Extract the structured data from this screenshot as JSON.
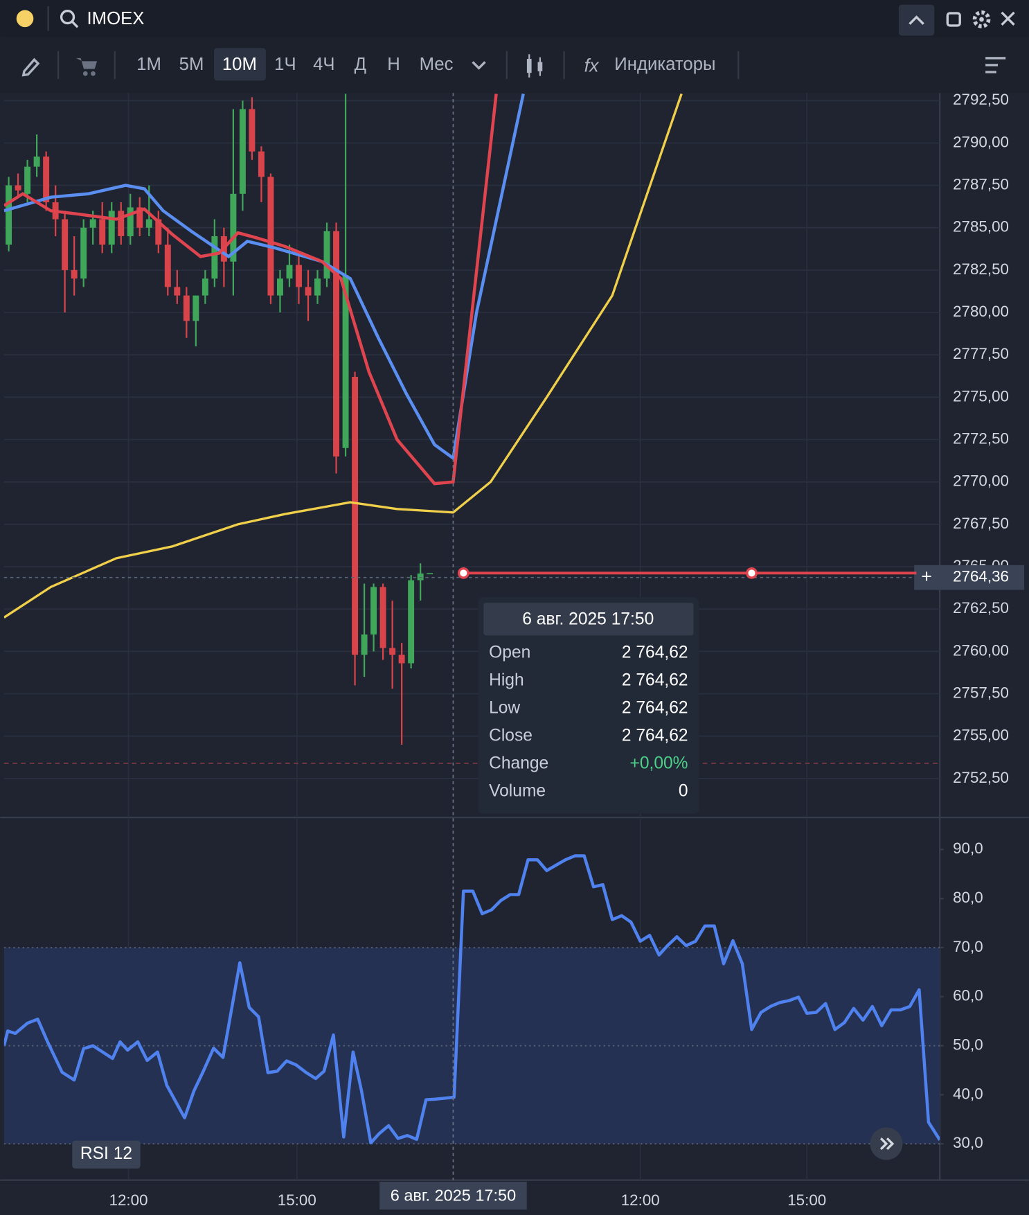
{
  "window": {
    "symbol": "IMOEX"
  },
  "toolbar": {
    "timeframes": [
      "1М",
      "5М",
      "10М",
      "1Ч",
      "4Ч",
      "Д",
      "Н",
      "Мес"
    ],
    "indicators": "Индикаторы"
  },
  "tooltip": {
    "title": "6 авг. 2025 17:50",
    "rows": [
      {
        "label": "Open",
        "value": "2 764,62"
      },
      {
        "label": "High",
        "value": "2 764,62"
      },
      {
        "label": "Low",
        "value": "2 764,62"
      },
      {
        "label": "Close",
        "value": "2 764,62"
      },
      {
        "label": "Change",
        "value": "+0,00%",
        "color": "#4cd08a"
      },
      {
        "label": "Volume",
        "value": "0"
      }
    ]
  },
  "chart_data": [
    {
      "type": "candlestick",
      "xlim": [
        0,
        100
      ],
      "ylim": [
        2750.2,
        2792.95
      ],
      "grid": true,
      "up_color": "#3fa65a",
      "down_color": "#d9434a",
      "xticks": [
        {
          "value": 13.3,
          "label": "12:00"
        },
        {
          "value": 31.3,
          "label": "15:00"
        },
        {
          "value": 68,
          "label": "12:00"
        },
        {
          "value": 85.8,
          "label": "15:00"
        }
      ],
      "yticks": [
        {
          "value": 2752.5,
          "label": "2752,50"
        },
        {
          "value": 2755,
          "label": "2755,00"
        },
        {
          "value": 2757.5,
          "label": "2757,50"
        },
        {
          "value": 2760,
          "label": "2760,00"
        },
        {
          "value": 2762.5,
          "label": "2762,50"
        },
        {
          "value": 2765,
          "label": "2765,00"
        },
        {
          "value": 2767.5,
          "label": "2767,50"
        },
        {
          "value": 2770,
          "label": "2770,00"
        },
        {
          "value": 2772.5,
          "label": "2772,50"
        },
        {
          "value": 2775,
          "label": "2775,00"
        },
        {
          "value": 2777.5,
          "label": "2777,50"
        },
        {
          "value": 2780,
          "label": "2780,00"
        },
        {
          "value": 2782.5,
          "label": "2782,50"
        },
        {
          "value": 2785,
          "label": "2785,00"
        },
        {
          "value": 2787.5,
          "label": "2787,50"
        },
        {
          "value": 2790,
          "label": "2790,00"
        },
        {
          "value": 2792.5,
          "label": "2792,50"
        }
      ],
      "candles": {
        "x": [
          0.5,
          1.5,
          2.5,
          3.5,
          4.5,
          5.5,
          6.5,
          7.5,
          8.5,
          9.5,
          10.5,
          11.5,
          12.5,
          13.5,
          14.5,
          15.5,
          16.5,
          17.5,
          18.5,
          19.5,
          20.5,
          21.5,
          22.5,
          23.5,
          24.5,
          25.5,
          26.5,
          27.5,
          28.5,
          29.5,
          30.5,
          31.5,
          32.5,
          33.5,
          34.5,
          35.5,
          36.5,
          37.5,
          38.5,
          39.5,
          40.5,
          41.5,
          42.5,
          43.5,
          44.5,
          45.5
        ],
        "open": [
          2784.0,
          2787.5,
          2787.0,
          2788.6,
          2789.2,
          2786.5,
          2785.5,
          2782.5,
          2782.0,
          2785.0,
          2785.5,
          2784.0,
          2786.0,
          2784.5,
          2786.2,
          2785.0,
          2785.5,
          2784.0,
          2781.5,
          2781.0,
          2779.5,
          2781.0,
          2782.0,
          2784.5,
          2783.0,
          2787.0,
          2792.0,
          2789.5,
          2788.0,
          2781.0,
          2782.0,
          2782.8,
          2781.5,
          2781.0,
          2782.0,
          2784.8,
          2772.0,
          2776.2,
          2759.8,
          2761.0,
          2763.8,
          2760.2,
          2759.8,
          2759.3,
          2764.2,
          2764.62
        ],
        "high": [
          2788.0,
          2788.2,
          2789.0,
          2790.5,
          2789.5,
          2787.5,
          2786.0,
          2784.5,
          2785.5,
          2786.0,
          2786.5,
          2786.5,
          2786.5,
          2787.0,
          2786.8,
          2787.5,
          2786.0,
          2785.0,
          2782.5,
          2781.5,
          2781.0,
          2782.5,
          2785.5,
          2785.0,
          2792.0,
          2792.5,
          2792.7,
          2789.8,
          2788.2,
          2782.5,
          2784.0,
          2783.5,
          2782.5,
          2782.5,
          2785.3,
          2785.3,
          2792.9,
          2776.5,
          2764.0,
          2764.0,
          2764.0,
          2763.0,
          2760.5,
          2764.5,
          2765.2,
          2764.62
        ],
        "low": [
          2783.6,
          2786.8,
          2786.5,
          2788.0,
          2786.0,
          2784.5,
          2780.0,
          2781.0,
          2781.5,
          2784.0,
          2783.5,
          2783.5,
          2784.0,
          2784.0,
          2784.5,
          2784.5,
          2783.5,
          2781.0,
          2780.5,
          2778.5,
          2778.0,
          2780.5,
          2781.5,
          2781.5,
          2781.0,
          2786.0,
          2789.0,
          2786.5,
          2780.5,
          2780.0,
          2781.5,
          2780.5,
          2779.5,
          2780.5,
          2781.5,
          2770.5,
          2771.5,
          2758.0,
          2758.5,
          2760.0,
          2759.5,
          2757.8,
          2754.5,
          2759.0,
          2763.0,
          2764.62
        ],
        "close": [
          2787.5,
          2787.2,
          2788.6,
          2789.2,
          2786.5,
          2785.5,
          2782.5,
          2782.0,
          2785.0,
          2785.5,
          2784.0,
          2786.0,
          2784.5,
          2786.2,
          2785.0,
          2785.5,
          2784.0,
          2781.5,
          2781.0,
          2779.5,
          2781.0,
          2782.0,
          2784.5,
          2783.0,
          2787.0,
          2792.0,
          2789.5,
          2788.0,
          2781.0,
          2782.0,
          2782.8,
          2781.5,
          2781.0,
          2782.0,
          2784.8,
          2771.5,
          2782.2,
          2759.8,
          2761.0,
          2763.8,
          2760.2,
          2759.8,
          2759.3,
          2764.2,
          2764.6,
          2764.62
        ]
      },
      "series": [
        {
          "color": "#f0cf4a",
          "x": [
            0,
            5,
            12,
            18,
            25,
            30,
            35,
            37,
            42,
            48,
            52,
            58,
            65,
            72.4
          ],
          "values": [
            2762.0,
            2763.8,
            2765.5,
            2766.2,
            2767.5,
            2768.1,
            2768.6,
            2768.8,
            2768.4,
            2768.2,
            2770.0,
            2775.0,
            2781.0,
            2792.9
          ]
        },
        {
          "color": "#5a8ef0",
          "x": [
            0,
            5,
            9,
            13,
            15,
            17,
            20,
            24,
            26,
            29,
            34,
            37,
            40,
            43,
            46,
            48,
            50.5,
            55.5
          ],
          "values": [
            2786.0,
            2786.8,
            2787.0,
            2787.5,
            2787.3,
            2786.0,
            2784.8,
            2783.3,
            2784.2,
            2783.8,
            2783.0,
            2782.0,
            2778.5,
            2775.2,
            2772.2,
            2771.4,
            2780.0,
            2792.9
          ]
        },
        {
          "color": "#e0454f",
          "x": [
            0,
            2,
            5,
            8,
            12,
            15,
            18,
            21,
            23,
            25,
            27,
            30,
            34,
            36,
            39,
            42,
            46,
            48,
            52.6
          ],
          "values": [
            2786.3,
            2787.0,
            2786.0,
            2785.8,
            2785.5,
            2786.1,
            2784.6,
            2783.3,
            2783.5,
            2784.7,
            2784.4,
            2783.9,
            2783.0,
            2782.0,
            2776.5,
            2772.5,
            2769.9,
            2770.0,
            2792.9
          ]
        }
      ],
      "level_line": {
        "value": 2764.62,
        "x": [
          49.1,
          97.5
        ],
        "handles": [
          49.1,
          79.9
        ],
        "color": "#e0454f"
      },
      "last_price": {
        "value": 2764.36,
        "label": "2764,36"
      },
      "reference_line": 2753.4,
      "crosshair": {
        "value": 48,
        "label": "6 авг. 2025 17:50"
      }
    },
    {
      "type": "line",
      "label": "RSI 12",
      "xlim": [
        0,
        100
      ],
      "ylim": [
        22.6,
        96.2
      ],
      "band": [
        30,
        70
      ],
      "levels": [
        30,
        50,
        70
      ],
      "yticks": [
        {
          "value": 30,
          "label": "30,0"
        },
        {
          "value": 40,
          "label": "40,0"
        },
        {
          "value": 50,
          "label": "50,0"
        },
        {
          "value": 60,
          "label": "60,0"
        },
        {
          "value": 70,
          "label": "70,0"
        },
        {
          "value": 80,
          "label": "80,0"
        },
        {
          "value": 90,
          "label": "90,0"
        }
      ],
      "series": [
        {
          "color": "#4f82ee",
          "x": [
            0,
            0.4,
            1.2,
            2.5,
            3.6,
            4.6,
            6.2,
            7.5,
            8.5,
            9.5,
            11.6,
            12.4,
            13.2,
            14.3,
            15.3,
            16.4,
            17.4,
            19.3,
            20.3,
            21.3,
            22.4,
            23.4,
            25.2,
            26.2,
            27.2,
            28.2,
            29.2,
            30.2,
            31.2,
            32.3,
            33.3,
            34.2,
            35.2,
            36.3,
            37.3,
            38.2,
            39.2,
            40.1,
            41.1,
            42.1,
            43.1,
            44.1,
            45.1,
            46.1,
            48.1,
            49.1,
            50.1,
            51.1,
            52.1,
            53.1,
            54.1,
            55.0,
            56.0,
            57.0,
            58.0,
            59.0,
            60.0,
            61.0,
            62.0,
            63.0,
            64.0,
            65.0,
            66.0,
            67.0,
            68.0,
            69.0,
            70.0,
            70.9,
            71.9,
            72.9,
            73.9,
            74.9,
            75.9,
            76.9,
            77.9,
            78.9,
            79.9,
            80.9,
            81.9,
            82.9,
            83.9,
            84.9,
            85.8,
            86.8,
            87.8,
            88.8,
            89.8,
            90.8,
            91.8,
            92.8,
            93.8,
            94.8,
            95.8,
            96.8,
            97.8,
            98.8,
            100
          ],
          "values": [
            50,
            53,
            52.5,
            54.6,
            55.4,
            51,
            44.6,
            43,
            49.4,
            50,
            47.4,
            50.8,
            49.1,
            50.8,
            47,
            48.7,
            41.9,
            35.3,
            40.8,
            44.8,
            49.5,
            47.6,
            66.9,
            57.8,
            55.9,
            44.5,
            44.8,
            46.9,
            46.1,
            44.5,
            43.3,
            44.8,
            52.2,
            31.4,
            48.7,
            40.8,
            30.2,
            32.1,
            33.7,
            31.1,
            31.7,
            30.9,
            39,
            39.1,
            39.5,
            81.5,
            81.5,
            76.9,
            77.7,
            79.6,
            80.8,
            80.8,
            87.9,
            87.9,
            85.7,
            86.8,
            87.9,
            88.7,
            88.7,
            82.4,
            82.8,
            75.7,
            76.5,
            75.2,
            71.3,
            72.5,
            68.5,
            70.4,
            72.2,
            70.4,
            71.3,
            74.4,
            74.4,
            66.7,
            71.4,
            66.7,
            53.3,
            56.8,
            58,
            58.8,
            59.2,
            59.9,
            56.6,
            56.8,
            58.6,
            53.3,
            54.7,
            57.6,
            55.2,
            58,
            54.1,
            57.3,
            57.3,
            58,
            61.4,
            34.4,
            30.8
          ]
        }
      ]
    }
  ]
}
